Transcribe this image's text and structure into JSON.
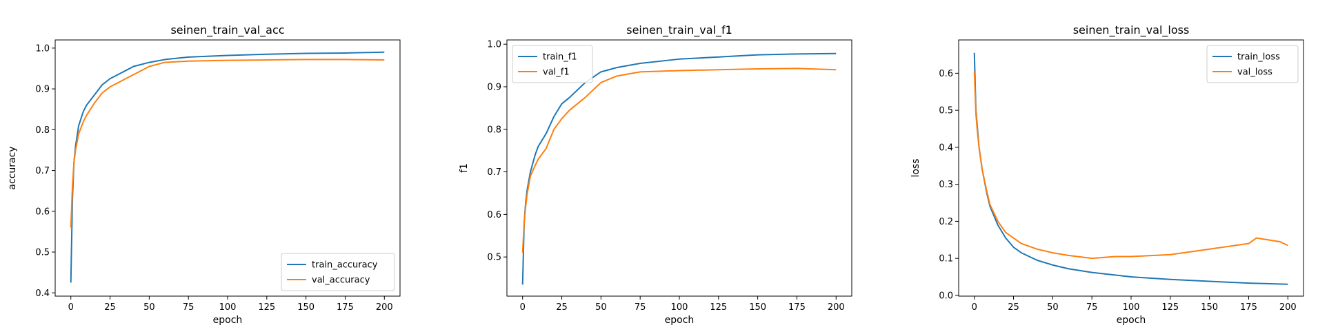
{
  "colors": {
    "train": "#1f77b4",
    "val": "#ff7f0e"
  },
  "chart_data": [
    {
      "type": "line",
      "title": "seinen_train_val_acc",
      "xlabel": "epoch",
      "ylabel": "accuracy",
      "xlim": [
        -10,
        210
      ],
      "ylim": [
        0.392,
        1.02
      ],
      "xticks": [
        0,
        25,
        50,
        75,
        100,
        125,
        150,
        175,
        200
      ],
      "yticks": [
        0.4,
        0.5,
        0.6,
        0.7,
        0.8,
        0.9,
        1.0
      ],
      "ytick_labels": [
        "0.4",
        "0.5",
        "0.6",
        "0.7",
        "0.8",
        "0.9",
        "1.0"
      ],
      "legend_loc": "lower-right",
      "series": [
        {
          "name": "train_accuracy",
          "color": "#1f77b4",
          "x": [
            0,
            1,
            2,
            3,
            5,
            8,
            10,
            15,
            20,
            25,
            30,
            35,
            40,
            50,
            60,
            75,
            100,
            125,
            150,
            175,
            200
          ],
          "y": [
            0.425,
            0.63,
            0.72,
            0.76,
            0.81,
            0.845,
            0.86,
            0.885,
            0.91,
            0.925,
            0.935,
            0.945,
            0.955,
            0.965,
            0.972,
            0.978,
            0.982,
            0.985,
            0.987,
            0.988,
            0.99
          ]
        },
        {
          "name": "val_accuracy",
          "color": "#ff7f0e",
          "x": [
            0,
            1,
            2,
            3,
            5,
            8,
            10,
            15,
            20,
            25,
            30,
            35,
            40,
            50,
            60,
            75,
            100,
            125,
            150,
            175,
            200
          ],
          "y": [
            0.56,
            0.66,
            0.72,
            0.75,
            0.79,
            0.82,
            0.835,
            0.865,
            0.89,
            0.905,
            0.915,
            0.925,
            0.935,
            0.955,
            0.965,
            0.968,
            0.97,
            0.971,
            0.972,
            0.972,
            0.971
          ]
        }
      ]
    },
    {
      "type": "line",
      "title": "seinen_train_val_f1",
      "xlabel": "epoch",
      "ylabel": "f1",
      "xlim": [
        -10,
        210
      ],
      "ylim": [
        0.408,
        1.01
      ],
      "xticks": [
        0,
        25,
        50,
        75,
        100,
        125,
        150,
        175,
        200
      ],
      "yticks": [
        0.5,
        0.6,
        0.7,
        0.8,
        0.9,
        1.0
      ],
      "ytick_labels": [
        "0.5",
        "0.6",
        "0.7",
        "0.8",
        "0.9",
        "1.0"
      ],
      "legend_loc": "upper-left",
      "series": [
        {
          "name": "train_f1",
          "color": "#1f77b4",
          "x": [
            0,
            1,
            2,
            3,
            5,
            8,
            10,
            15,
            20,
            25,
            30,
            40,
            50,
            60,
            75,
            100,
            125,
            150,
            175,
            200
          ],
          "y": [
            0.435,
            0.58,
            0.63,
            0.66,
            0.7,
            0.74,
            0.76,
            0.79,
            0.83,
            0.86,
            0.875,
            0.91,
            0.935,
            0.945,
            0.955,
            0.965,
            0.97,
            0.975,
            0.977,
            0.978
          ]
        },
        {
          "name": "val_f1",
          "color": "#ff7f0e",
          "x": [
            0,
            1,
            2,
            3,
            5,
            8,
            10,
            15,
            20,
            25,
            30,
            40,
            50,
            60,
            75,
            100,
            125,
            150,
            175,
            200
          ],
          "y": [
            0.51,
            0.58,
            0.62,
            0.65,
            0.69,
            0.715,
            0.73,
            0.755,
            0.8,
            0.825,
            0.845,
            0.875,
            0.91,
            0.925,
            0.935,
            0.938,
            0.94,
            0.942,
            0.943,
            0.94
          ]
        }
      ]
    },
    {
      "type": "line",
      "title": "seinen_train_val_loss",
      "xlabel": "epoch",
      "ylabel": "loss",
      "xlim": [
        -10,
        210
      ],
      "ylim": [
        -0.002,
        0.69
      ],
      "xticks": [
        0,
        25,
        50,
        75,
        100,
        125,
        150,
        175,
        200
      ],
      "yticks": [
        0.0,
        0.1,
        0.2,
        0.3,
        0.4,
        0.5,
        0.6
      ],
      "ytick_labels": [
        "0.0",
        "0.1",
        "0.2",
        "0.3",
        "0.4",
        "0.5",
        "0.6"
      ],
      "legend_loc": "upper-right",
      "series": [
        {
          "name": "train_loss",
          "color": "#1f77b4",
          "x": [
            0,
            1,
            2,
            3,
            5,
            8,
            10,
            15,
            20,
            25,
            30,
            40,
            50,
            60,
            75,
            100,
            125,
            150,
            175,
            200
          ],
          "y": [
            0.655,
            0.5,
            0.45,
            0.4,
            0.34,
            0.275,
            0.24,
            0.19,
            0.155,
            0.13,
            0.115,
            0.095,
            0.082,
            0.072,
            0.062,
            0.05,
            0.043,
            0.038,
            0.033,
            0.03
          ]
        },
        {
          "name": "val_loss",
          "color": "#ff7f0e",
          "x": [
            0,
            1,
            2,
            3,
            5,
            8,
            10,
            15,
            20,
            25,
            30,
            40,
            50,
            60,
            75,
            90,
            100,
            125,
            150,
            175,
            180,
            195,
            200
          ],
          "y": [
            0.605,
            0.49,
            0.44,
            0.4,
            0.34,
            0.28,
            0.245,
            0.2,
            0.17,
            0.155,
            0.14,
            0.125,
            0.115,
            0.108,
            0.1,
            0.105,
            0.105,
            0.11,
            0.125,
            0.14,
            0.155,
            0.145,
            0.135
          ]
        }
      ]
    }
  ]
}
